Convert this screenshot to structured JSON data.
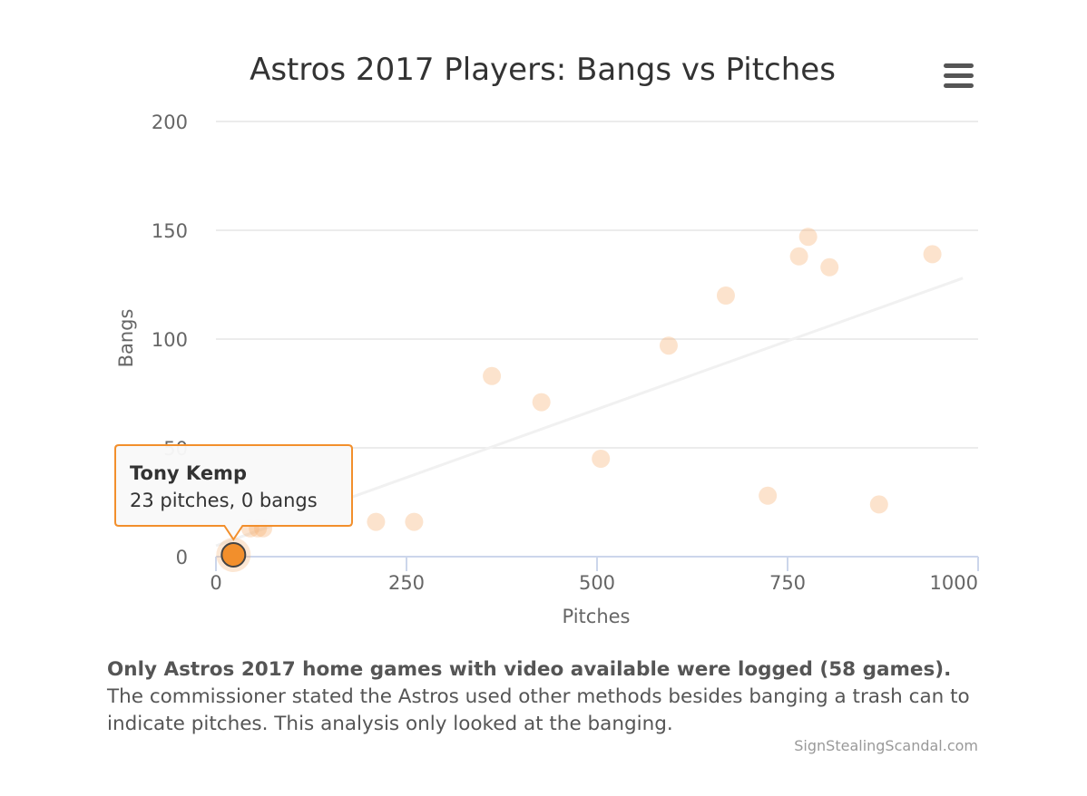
{
  "chart_data": {
    "type": "scatter",
    "title": "Astros 2017 Players: Bangs vs Pitches",
    "xlabel": "Pitches",
    "ylabel": "Bangs",
    "xlim": [
      0,
      1000
    ],
    "ylim": [
      0,
      200
    ],
    "x_ticks": [
      "0",
      "250",
      "500",
      "750",
      "1000"
    ],
    "y_ticks": [
      "0",
      "50",
      "100",
      "150",
      "200"
    ],
    "grid": true,
    "legend": "none",
    "point_color": "#f5b06f",
    "highlight_color": "#f28f2c",
    "trendline": {
      "x": [
        0,
        980
      ],
      "y": [
        5,
        128
      ]
    },
    "points": [
      {
        "x": 23,
        "y": 0
      },
      {
        "x": 45,
        "y": 13
      },
      {
        "x": 55,
        "y": 13
      },
      {
        "x": 62,
        "y": 13
      },
      {
        "x": 210,
        "y": 16
      },
      {
        "x": 260,
        "y": 16
      },
      {
        "x": 362,
        "y": 83
      },
      {
        "x": 427,
        "y": 71
      },
      {
        "x": 505,
        "y": 45
      },
      {
        "x": 594,
        "y": 97
      },
      {
        "x": 669,
        "y": 120
      },
      {
        "x": 724,
        "y": 28
      },
      {
        "x": 765,
        "y": 138
      },
      {
        "x": 777,
        "y": 147
      },
      {
        "x": 805,
        "y": 133
      },
      {
        "x": 870,
        "y": 24
      },
      {
        "x": 940,
        "y": 139
      }
    ],
    "tooltip": {
      "point_index": 0,
      "name": "Tony Kemp",
      "text": "23 pitches, 0 bangs"
    }
  },
  "caption": {
    "lead": "Only Astros 2017 home games with video available were logged (58 games).",
    "body": "The commissioner stated the Astros used other methods besides banging a trash can to indicate pitches. This analysis only looked at the banging."
  },
  "credit": "SignStealingScandal.com",
  "menu_icon": "hamburger-menu-icon"
}
